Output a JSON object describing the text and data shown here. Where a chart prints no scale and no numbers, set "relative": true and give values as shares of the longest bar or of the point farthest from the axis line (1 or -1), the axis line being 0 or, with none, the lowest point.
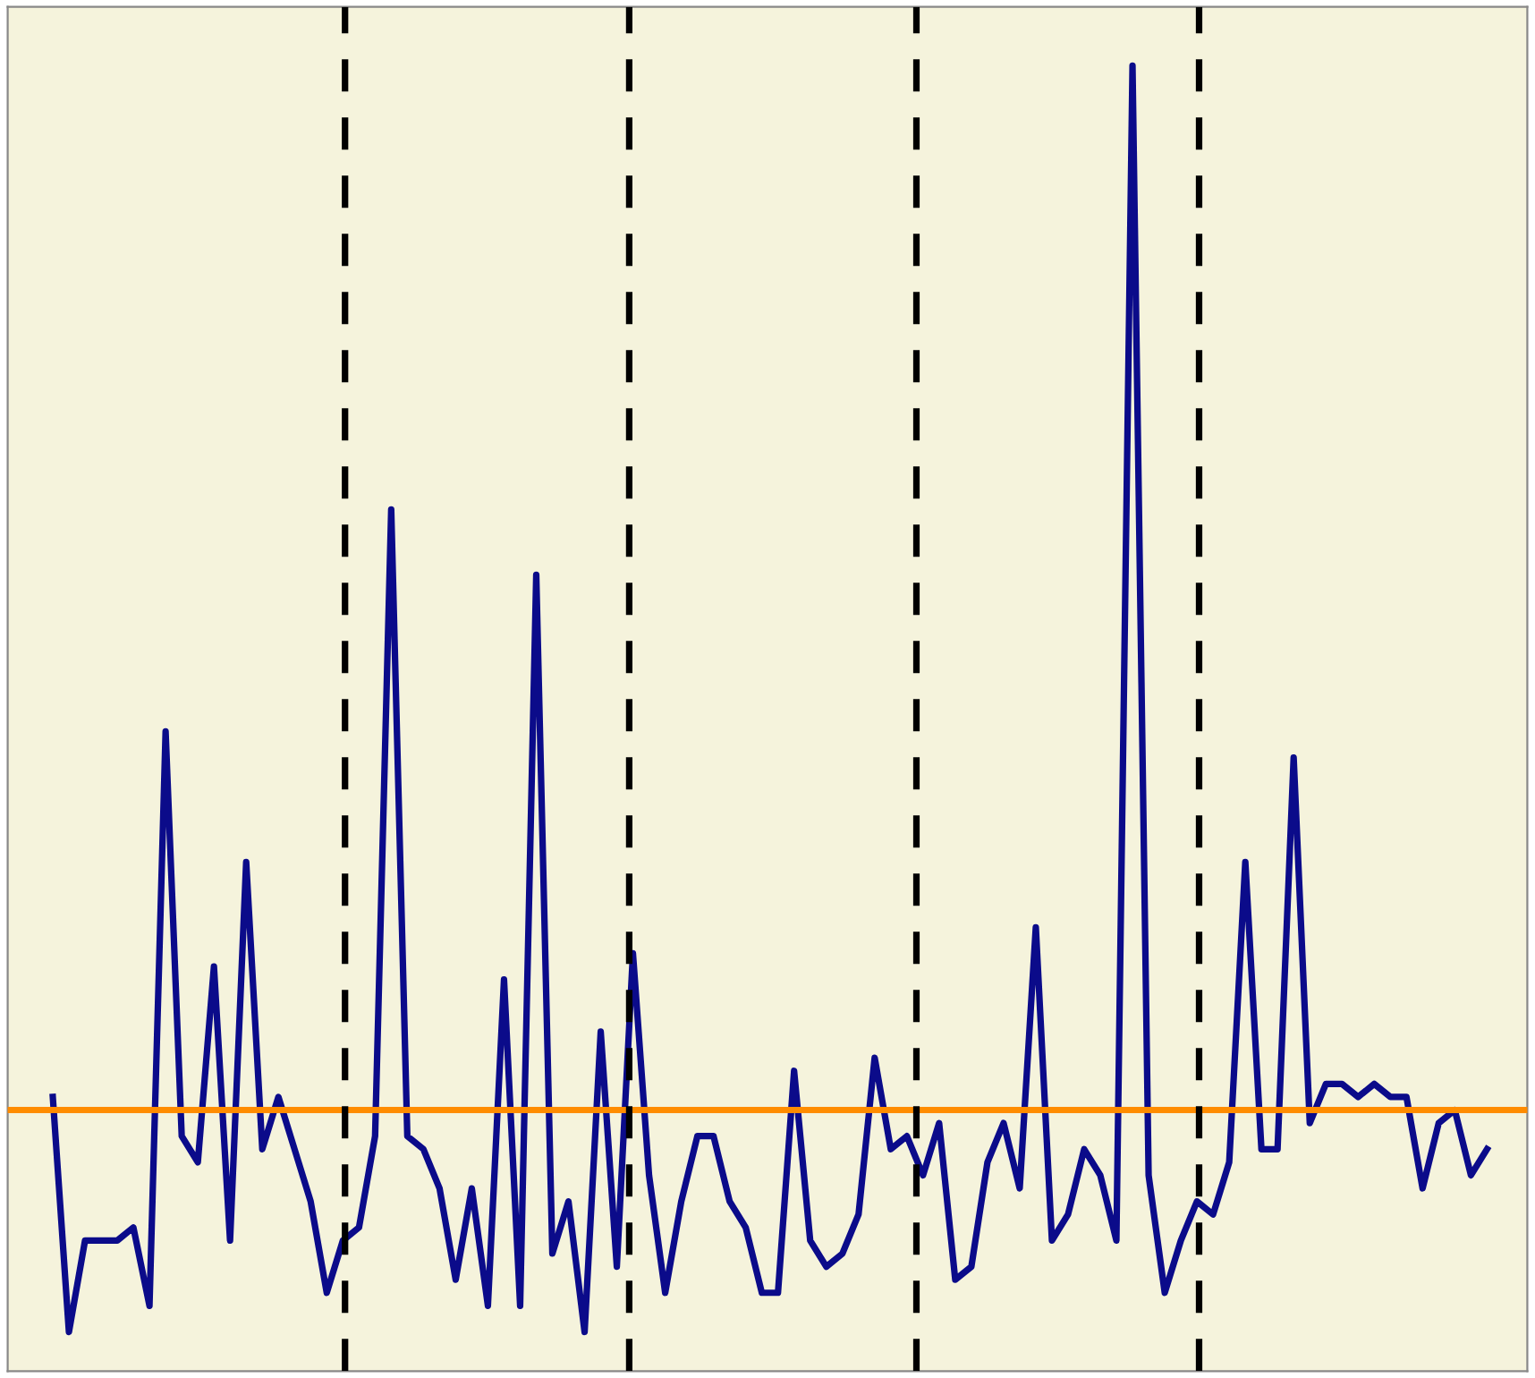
{
  "chart_data": {
    "type": "line",
    "relative": true,
    "grid": false,
    "categories": [
      null,
      null,
      null,
      null,
      null,
      null,
      null,
      null,
      null,
      null,
      null,
      null,
      null,
      null,
      null,
      null,
      null,
      null,
      null,
      null,
      null,
      null,
      null,
      null,
      null,
      null,
      null,
      null,
      null,
      null,
      null,
      null,
      null,
      null,
      null,
      null,
      null,
      null,
      null,
      null,
      null,
      null,
      null,
      null,
      null,
      null,
      null,
      null,
      null,
      null,
      null,
      null,
      null,
      null,
      null,
      null,
      null,
      null,
      null,
      null,
      null,
      null,
      null,
      null,
      null,
      null,
      null,
      null,
      null,
      null,
      null,
      null,
      null,
      null,
      null,
      null,
      null,
      null,
      null,
      null,
      null,
      null,
      null,
      null,
      null,
      null,
      null,
      null,
      null,
      null
    ],
    "series": [
      {
        "color": "#0b0b8a",
        "values": [
          0.21,
          0.03,
          0.1,
          0.1,
          0.1,
          0.11,
          0.05,
          0.49,
          0.18,
          0.16,
          0.31,
          0.1,
          0.39,
          0.17,
          0.21,
          0.17,
          0.13,
          0.06,
          0.1,
          0.11,
          0.18,
          0.66,
          0.18,
          0.17,
          0.14,
          0.07,
          0.14,
          0.05,
          0.3,
          0.05,
          0.61,
          0.09,
          0.13,
          0.03,
          0.26,
          0.08,
          0.32,
          0.15,
          0.06,
          0.13,
          0.18,
          0.18,
          0.13,
          0.11,
          0.06,
          0.06,
          0.23,
          0.1,
          0.08,
          0.09,
          0.12,
          0.24,
          0.17,
          0.18,
          0.15,
          0.19,
          0.07,
          0.08,
          0.16,
          0.19,
          0.14,
          0.34,
          0.1,
          0.12,
          0.17,
          0.15,
          0.1,
          1,
          0.15,
          0.06,
          0.1,
          0.13,
          0.12,
          0.16,
          0.39,
          0.17,
          0.17,
          0.47,
          0.19,
          0.22,
          0.22,
          0.21,
          0.22,
          0.21,
          0.21,
          0.14,
          0.19,
          0.2,
          0.15,
          0.17
        ]
      }
    ],
    "ref_lines": [
      {
        "axis": "y",
        "value": 0.2,
        "color": "#ff8c00",
        "line_style": "solid"
      }
    ]
  }
}
